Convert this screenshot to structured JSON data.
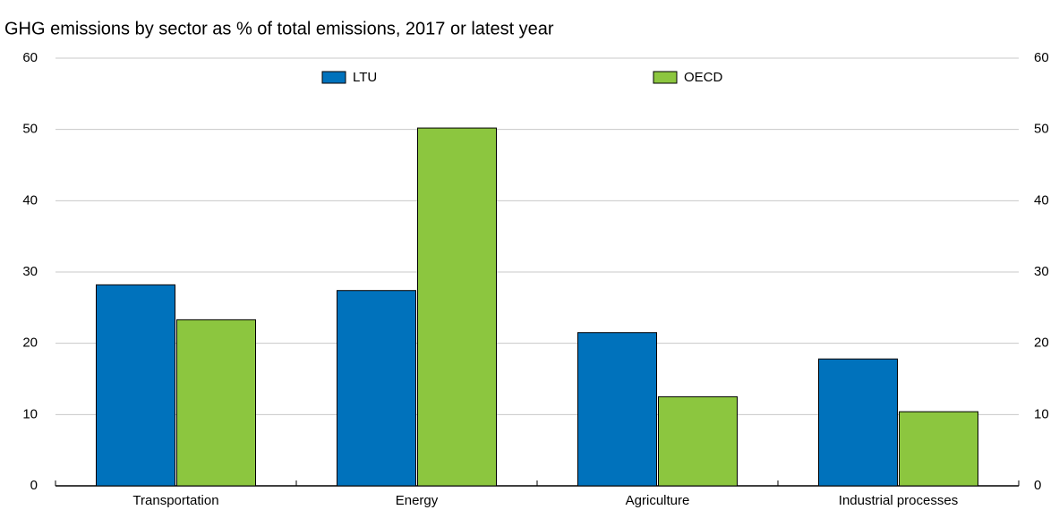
{
  "chart_data": {
    "type": "bar",
    "title": "GHG emissions by sector as % of total emissions, 2017 or latest year",
    "categories": [
      "Transportation",
      "Energy",
      "Agriculture",
      "Industrial processes"
    ],
    "series": [
      {
        "name": "LTU",
        "color": "#0072bc",
        "values": [
          28.2,
          27.4,
          21.5,
          17.8
        ]
      },
      {
        "name": "OECD",
        "color": "#8cc63f",
        "values": [
          23.3,
          50.2,
          12.5,
          10.4
        ]
      }
    ],
    "ylim": [
      0,
      60
    ],
    "yticks": [
      0,
      10,
      20,
      30,
      40,
      50,
      60
    ],
    "y2lim": [
      0,
      60
    ],
    "y2ticks": [
      0,
      10,
      20,
      30,
      40,
      50,
      60
    ],
    "grid": true,
    "legend": "top"
  }
}
